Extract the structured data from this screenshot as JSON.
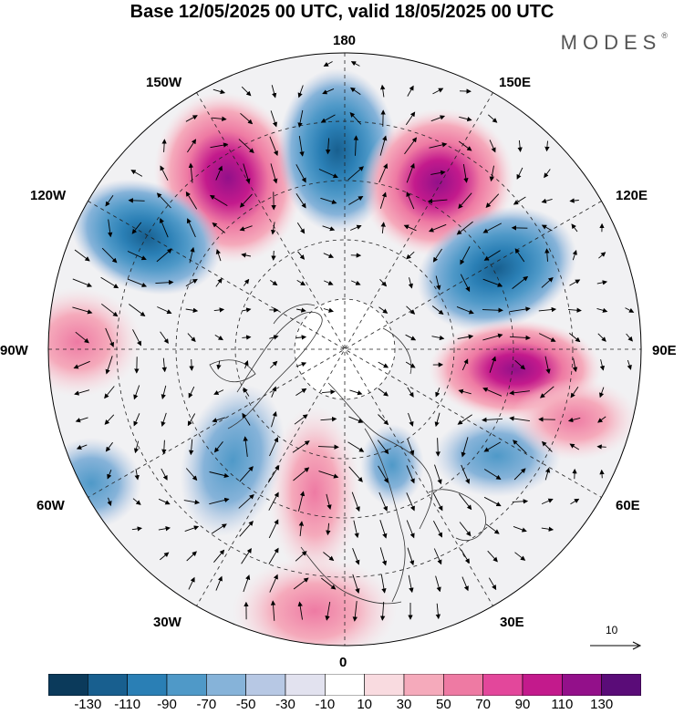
{
  "title": "Base 12/05/2025 00 UTC, valid 18/05/2025 00 UTC",
  "brand": "MODES",
  "brand_mark": "®",
  "longitude_labels": {
    "lon_180": "180",
    "lon_150e": "150E",
    "lon_120e": "120E",
    "lon_90e": "90E",
    "lon_60e": "60E",
    "lon_30e": "30E",
    "lon_0": "0",
    "lon_30w": "30W",
    "lon_60w": "60W",
    "lon_90w": "90W",
    "lon_120w": "120W",
    "lon_150w": "150W"
  },
  "reference_vector_label": "10",
  "colorbar": {
    "colors": [
      "#0b3a5b",
      "#185f8f",
      "#2a7fb5",
      "#4f99c8",
      "#86b3d9",
      "#b7c8e4",
      "#e2e2ef",
      "#ffffff",
      "#f9dbe0",
      "#f5aabb",
      "#ee7aa3",
      "#e3479b",
      "#c31a8c",
      "#93108a",
      "#5a0c78"
    ],
    "ticks": [
      "-130",
      "-110",
      "-90",
      "-70",
      "-50",
      "-30",
      "-10",
      "10",
      "30",
      "50",
      "70",
      "90",
      "110",
      "130"
    ]
  },
  "map_colors": {
    "land_shade": "#ececec",
    "coast": "#333333",
    "grid": "#222222"
  }
}
